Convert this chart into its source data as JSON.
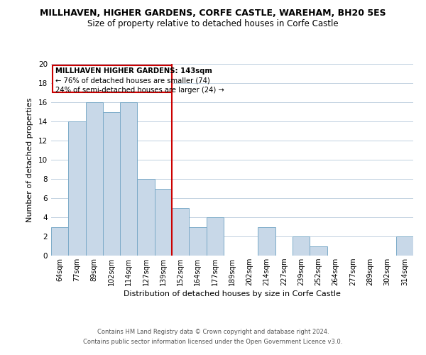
{
  "title": "MILLHAVEN, HIGHER GARDENS, CORFE CASTLE, WAREHAM, BH20 5ES",
  "subtitle": "Size of property relative to detached houses in Corfe Castle",
  "xlabel": "Distribution of detached houses by size in Corfe Castle",
  "ylabel": "Number of detached properties",
  "footer_line1": "Contains HM Land Registry data © Crown copyright and database right 2024.",
  "footer_line2": "Contains public sector information licensed under the Open Government Licence v3.0.",
  "categories": [
    "64sqm",
    "77sqm",
    "89sqm",
    "102sqm",
    "114sqm",
    "127sqm",
    "139sqm",
    "152sqm",
    "164sqm",
    "177sqm",
    "189sqm",
    "202sqm",
    "214sqm",
    "227sqm",
    "239sqm",
    "252sqm",
    "264sqm",
    "277sqm",
    "289sqm",
    "302sqm",
    "314sqm"
  ],
  "values": [
    3,
    14,
    16,
    15,
    16,
    8,
    7,
    5,
    3,
    4,
    0,
    0,
    3,
    0,
    2,
    1,
    0,
    0,
    0,
    0,
    2
  ],
  "bar_color": "#c8d8e8",
  "bar_edge_color": "#7baac8",
  "vline_x_index": 6.5,
  "vline_color": "#cc0000",
  "ylim": [
    0,
    20
  ],
  "yticks": [
    0,
    2,
    4,
    6,
    8,
    10,
    12,
    14,
    16,
    18,
    20
  ],
  "annotation_title": "MILLHAVEN HIGHER GARDENS: 143sqm",
  "annotation_line1": "← 76% of detached houses are smaller (74)",
  "annotation_line2": "24% of semi-detached houses are larger (24) →",
  "background_color": "#ffffff",
  "grid_color": "#c0d0e0"
}
